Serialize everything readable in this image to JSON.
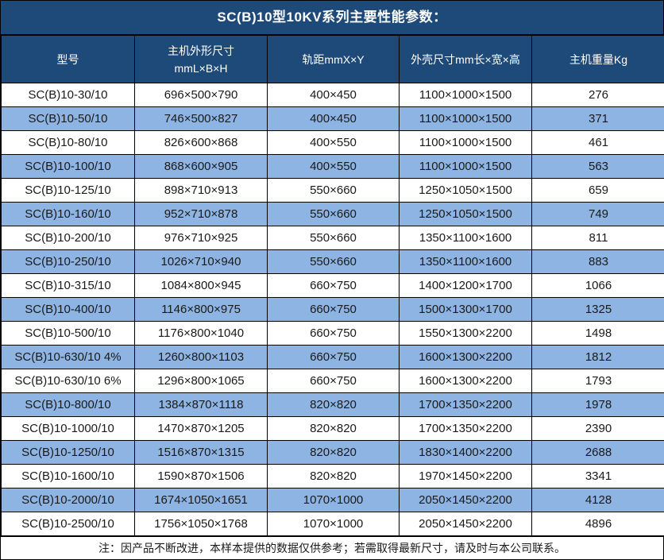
{
  "title": "SC(B)10型10KV系列主要性能参数：",
  "columns": [
    {
      "label": "型号",
      "sub": ""
    },
    {
      "label": "主机外形尺寸",
      "sub": "mmL×B×H"
    },
    {
      "label": "轨距mmX×Y",
      "sub": ""
    },
    {
      "label": "外壳尺寸mm长×宽×高",
      "sub": ""
    },
    {
      "label": "主机重量Kg",
      "sub": ""
    }
  ],
  "rows": [
    [
      "SC(B)10-30/10",
      "696×500×790",
      "400×450",
      "1100×1000×1500",
      "276"
    ],
    [
      "SC(B)10-50/10",
      "746×500×827",
      "400×450",
      "1100×1000×1500",
      "371"
    ],
    [
      "SC(B)10-80/10",
      "826×600×868",
      "400×550",
      "1100×1000×1500",
      "461"
    ],
    [
      "SC(B)10-100/10",
      "868×600×905",
      "400×550",
      "1100×1000×1500",
      "563"
    ],
    [
      "SC(B)10-125/10",
      "898×710×913",
      "550×660",
      "1250×1050×1500",
      "659"
    ],
    [
      "SC(B)10-160/10",
      "952×710×878",
      "550×660",
      "1250×1050×1500",
      "749"
    ],
    [
      "SC(B)10-200/10",
      "976×710×925",
      "550×660",
      "1350×1100×1600",
      "811"
    ],
    [
      "SC(B)10-250/10",
      "1026×710×940",
      "550×660",
      "1350×1100×1600",
      "883"
    ],
    [
      "SC(B)10-315/10",
      "1084×800×945",
      "660×750",
      "1400×1200×1700",
      "1066"
    ],
    [
      "SC(B)10-400/10",
      "1146×800×975",
      "660×750",
      "1500×1300×1700",
      "1325"
    ],
    [
      "SC(B)10-500/10",
      "1176×800×1040",
      "660×750",
      "1550×1300×2200",
      "1498"
    ],
    [
      "SC(B)10-630/10 4%",
      "1260×800×1103",
      "660×750",
      "1600×1300×2200",
      "1812"
    ],
    [
      "SC(B)10-630/10 6%",
      "1296×800×1065",
      "660×750",
      "1600×1300×2200",
      "1793"
    ],
    [
      "SC(B)10-800/10",
      "1384×870×1118",
      "820×820",
      "1700×1350×2200",
      "1978"
    ],
    [
      "SC(B)10-1000/10",
      "1470×870×1205",
      "820×820",
      "1700×1350×2200",
      "2390"
    ],
    [
      "SC(B)10-1250/10",
      "1516×870×1315",
      "820×820",
      "1830×1400×2200",
      "2688"
    ],
    [
      "SC(B)10-1600/10",
      "1590×870×1506",
      "820×820",
      "1970×1450×2200",
      "3341"
    ],
    [
      "SC(B)10-2000/10",
      "1674×1050×1651",
      "1070×1000",
      "2050×1450×2200",
      "4128"
    ],
    [
      "SC(B)10-2500/10",
      "1756×1050×1768",
      "1070×1000",
      "2050×1450×2200",
      "4896"
    ]
  ],
  "note": "注：因产品不断改进，本样本提供的数据仅供参考；若需取得最新尺寸，请及时与本公司联系。",
  "colors": {
    "header_bg": "#1E4A7A",
    "header_text": "#FFFFFF",
    "row_bg": "#FFFFFF",
    "row_alt_bg": "#8DB4E2",
    "body_text": "#1A1A1A",
    "border": "#000000"
  },
  "chart_data": {
    "type": "table",
    "title": "SC(B)10型10KV系列主要性能参数：",
    "columns": [
      "型号",
      "主机外形尺寸 mmL×B×H",
      "轨距mmX×Y",
      "外壳尺寸mm长×宽×高",
      "主机重量Kg"
    ],
    "rows": [
      [
        "SC(B)10-30/10",
        "696×500×790",
        "400×450",
        "1100×1000×1500",
        276
      ],
      [
        "SC(B)10-50/10",
        "746×500×827",
        "400×450",
        "1100×1000×1500",
        371
      ],
      [
        "SC(B)10-80/10",
        "826×600×868",
        "400×550",
        "1100×1000×1500",
        461
      ],
      [
        "SC(B)10-100/10",
        "868×600×905",
        "400×550",
        "1100×1000×1500",
        563
      ],
      [
        "SC(B)10-125/10",
        "898×710×913",
        "550×660",
        "1250×1050×1500",
        659
      ],
      [
        "SC(B)10-160/10",
        "952×710×878",
        "550×660",
        "1250×1050×1500",
        749
      ],
      [
        "SC(B)10-200/10",
        "976×710×925",
        "550×660",
        "1350×1100×1600",
        811
      ],
      [
        "SC(B)10-250/10",
        "1026×710×940",
        "550×660",
        "1350×1100×1600",
        883
      ],
      [
        "SC(B)10-315/10",
        "1084×800×945",
        "660×750",
        "1400×1200×1700",
        1066
      ],
      [
        "SC(B)10-400/10",
        "1146×800×975",
        "660×750",
        "1500×1300×1700",
        1325
      ],
      [
        "SC(B)10-500/10",
        "1176×800×1040",
        "660×750",
        "1550×1300×2200",
        1498
      ],
      [
        "SC(B)10-630/10 4%",
        "1260×800×1103",
        "660×750",
        "1600×1300×2200",
        1812
      ],
      [
        "SC(B)10-630/10 6%",
        "1296×800×1065",
        "660×750",
        "1600×1300×2200",
        1793
      ],
      [
        "SC(B)10-800/10",
        "1384×870×1118",
        "820×820",
        "1700×1350×2200",
        1978
      ],
      [
        "SC(B)10-1000/10",
        "1470×870×1205",
        "820×820",
        "1700×1350×2200",
        2390
      ],
      [
        "SC(B)10-1250/10",
        "1516×870×1315",
        "820×820",
        "1830×1400×2200",
        2688
      ],
      [
        "SC(B)10-1600/10",
        "1590×870×1506",
        "820×820",
        "1970×1450×2200",
        3341
      ],
      [
        "SC(B)10-2000/10",
        "1674×1050×1651",
        "1070×1000",
        "2050×1450×2200",
        4128
      ],
      [
        "SC(B)10-2500/10",
        "1756×1050×1768",
        "1070×1000",
        "2050×1450×2200",
        4896
      ]
    ]
  }
}
